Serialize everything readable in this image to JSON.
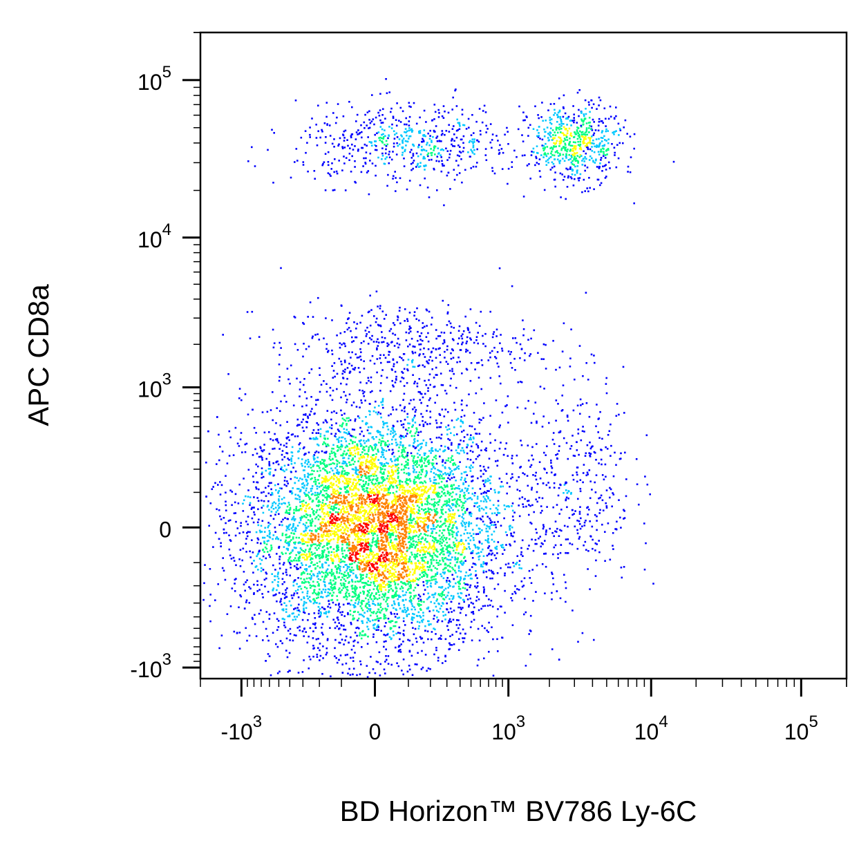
{
  "chart_data": {
    "type": "scatter",
    "style": "density-pseudocolor flow cytometry dot plot",
    "xlabel": "BD Horizon™ BV786 Ly-6C",
    "ylabel": "APC CD8a",
    "x_scale": "biexponential",
    "y_scale": "biexponential",
    "xlim": [
      -2000,
      200000
    ],
    "ylim": [
      -1200,
      200000
    ],
    "x_ticks": [
      {
        "base": "-10",
        "exp": "3"
      },
      {
        "base": "0",
        "exp": ""
      },
      {
        "base": "10",
        "exp": "3"
      },
      {
        "base": "10",
        "exp": "4"
      },
      {
        "base": "10",
        "exp": "5"
      }
    ],
    "y_ticks": [
      {
        "base": "-10",
        "exp": "3"
      },
      {
        "base": "0",
        "exp": ""
      },
      {
        "base": "10",
        "exp": "3"
      },
      {
        "base": "10",
        "exp": "4"
      },
      {
        "base": "10",
        "exp": "5"
      }
    ],
    "grid": false,
    "legend": "none",
    "density_colors": [
      "#0000ff",
      "#00c8ff",
      "#00ff80",
      "#ffff00",
      "#ff8000",
      "#ff0000"
    ],
    "populations": [
      {
        "x_center": 0,
        "y_center": 0,
        "x_spread": 300,
        "y_spread": 250,
        "share": 0.78,
        "description_hidden": true
      },
      {
        "x_center": 100,
        "y_center": 2000,
        "x_spread": 500,
        "y_spread": 900,
        "share": 0.05,
        "description_hidden": true
      },
      {
        "x_center": 3000,
        "y_center": 150,
        "x_spread": 2000,
        "y_spread": 400,
        "share": 0.04,
        "description_hidden": true
      },
      {
        "x_center": 100,
        "y_center": 40000,
        "x_spread": 400,
        "y_spread": 15000,
        "share": 0.065,
        "description_hidden": true
      },
      {
        "x_center": 3000,
        "y_center": 40000,
        "x_spread": 1500,
        "y_spread": 15000,
        "share": 0.065,
        "description_hidden": true
      }
    ]
  }
}
